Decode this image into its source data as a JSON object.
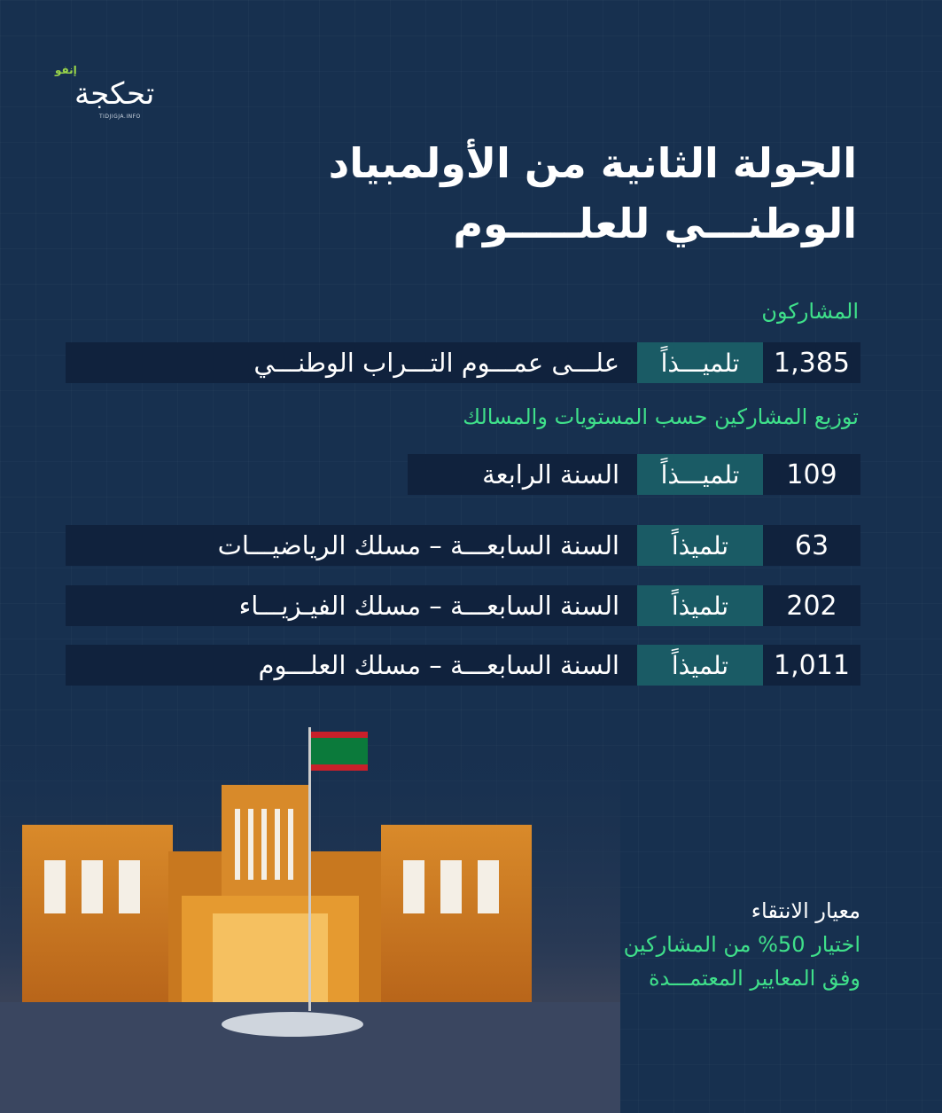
{
  "logo": {
    "name": "تحكجة",
    "suffix": "إنفو",
    "domain": "TIDJIGJA.INFO"
  },
  "title": {
    "line1": "الجولة الثانية من الأولمبياد",
    "line2": "الوطنـــي للعلـــــوم"
  },
  "participants": {
    "heading": "المشاركون",
    "count": "1,385",
    "unit": "تلميـــذاً",
    "label": "علـــى عمـــوم التـــراب الوطنـــي"
  },
  "distribution": {
    "heading": "توزيع المشاركين حسب المستويات والمسالك",
    "rows": [
      {
        "count": "109",
        "unit": "تلميـــذاً",
        "label": "السنة الرابعة"
      },
      {
        "count": "63",
        "unit": "تلميذاً",
        "label": "السنة السابعـــة – مسلك الرياضيـــات"
      },
      {
        "count": "202",
        "unit": "تلميذاً",
        "label": "السنة السابعـــة – مسلك الفيـزيـــاء"
      },
      {
        "count": "1,011",
        "unit": "تلميذاً",
        "label": "السنة السابعـــة – مسلك العلـــوم"
      }
    ]
  },
  "criteria": {
    "heading": "معيار الانتقاء",
    "line1": "اختيار 50% من المشاركين",
    "line2": "وفق المعايير المعتمـــدة"
  },
  "colors": {
    "background": "#17304f",
    "row": "#10223d",
    "badge": "#1a5b65",
    "accent": "#3fe08a"
  }
}
